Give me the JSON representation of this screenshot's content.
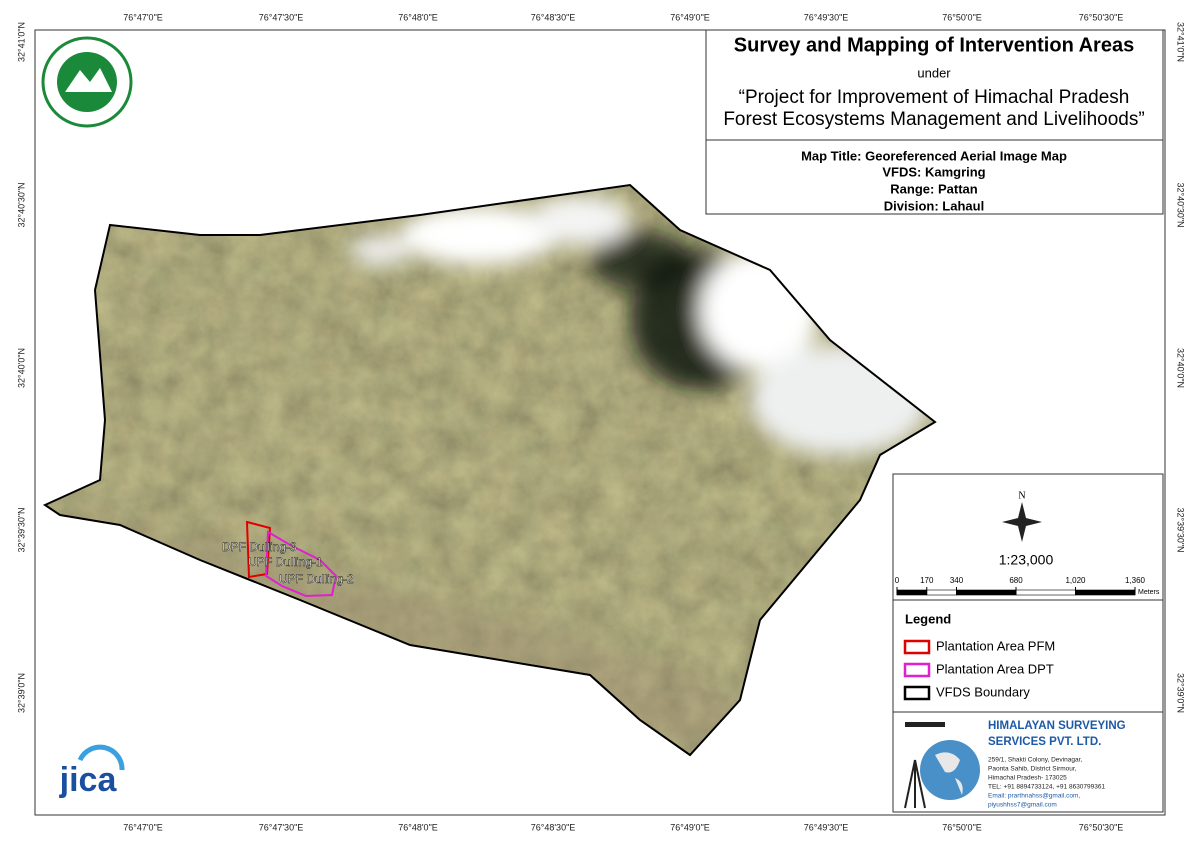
{
  "header": {
    "title": "Survey and Mapping of Intervention Areas",
    "subtitle": "under",
    "project": [
      "“Project for Improvement of Himachal Pradesh",
      "Forest Ecosystems Management and Livelihoods”"
    ]
  },
  "map_info": {
    "map_title": "Map Title: Georeferenced Aerial Image Map",
    "vfds": "VFDS: Kamgring",
    "range": "Range: Pattan",
    "division": "Division: Lahaul"
  },
  "graticule": {
    "longitudes": [
      "76°47'0\"E",
      "76°47'30\"E",
      "76°48'0\"E",
      "76°48'30\"E",
      "76°49'0\"E",
      "76°49'30\"E",
      "76°50'0\"E",
      "76°50'30\"E"
    ],
    "latitudes": [
      "32°41'0\"N",
      "32°40'30\"N",
      "32°40'0\"N",
      "32°39'30\"N",
      "32°39'0\"N"
    ]
  },
  "map_labels": [
    "DPF Dulling-3",
    "UPF Dulling-1",
    "UPF Dulling-2"
  ],
  "north": "N",
  "scale": "1:23,000",
  "scale_bar": {
    "ticks": [
      0,
      170,
      340,
      680,
      {
        "value": 1020,
        "label": "1,020"
      },
      {
        "value": 1360,
        "label": "1,360"
      }
    ],
    "unit": "Meters"
  },
  "legend": {
    "title": "Legend",
    "items": [
      {
        "label": "Plantation Area PFM",
        "color": "#e00000"
      },
      {
        "label": "Plantation Area DPT",
        "color": "#e020d0"
      },
      {
        "label": "VFDS Boundary",
        "color": "#000000"
      }
    ]
  },
  "company": {
    "name": [
      "HIMALAYAN SURVEYING",
      "SERVICES PVT. LTD."
    ],
    "address": [
      "259/1, Shakti Colony, Devinagar,",
      "Paonta Sahib, District Sirmour,",
      "Himachal Pradesh- 173025",
      "TEL: +91 8894733124, +91 8630799361",
      "Email: prarthnahss@gmail.com,",
      "piyushhss7@gmail.com"
    ]
  },
  "logo": "jica"
}
